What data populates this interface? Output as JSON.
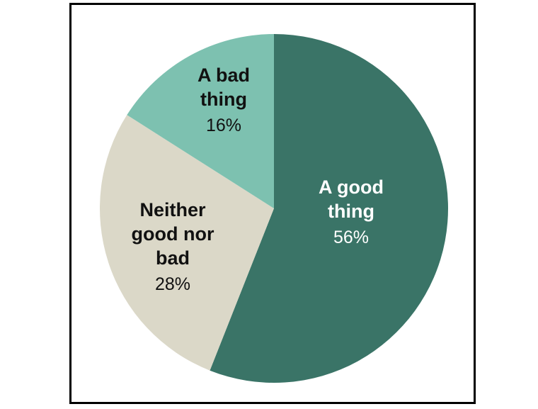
{
  "chart_data": {
    "type": "pie",
    "start_angle_deg": 0,
    "direction": "clockwise",
    "slices": [
      {
        "label_lines": [
          "A good",
          "thing"
        ],
        "value": 56,
        "value_text": "56%",
        "color": "#3a7467",
        "text_color": "#ffffff"
      },
      {
        "label_lines": [
          "Neither",
          "good nor",
          "bad"
        ],
        "value": 28,
        "value_text": "28%",
        "color": "#dbd8c8",
        "text_color": "#111111"
      },
      {
        "label_lines": [
          "A bad",
          "thing"
        ],
        "value": 16,
        "value_text": "16%",
        "color": "#7dc1b0",
        "text_color": "#111111"
      }
    ]
  }
}
